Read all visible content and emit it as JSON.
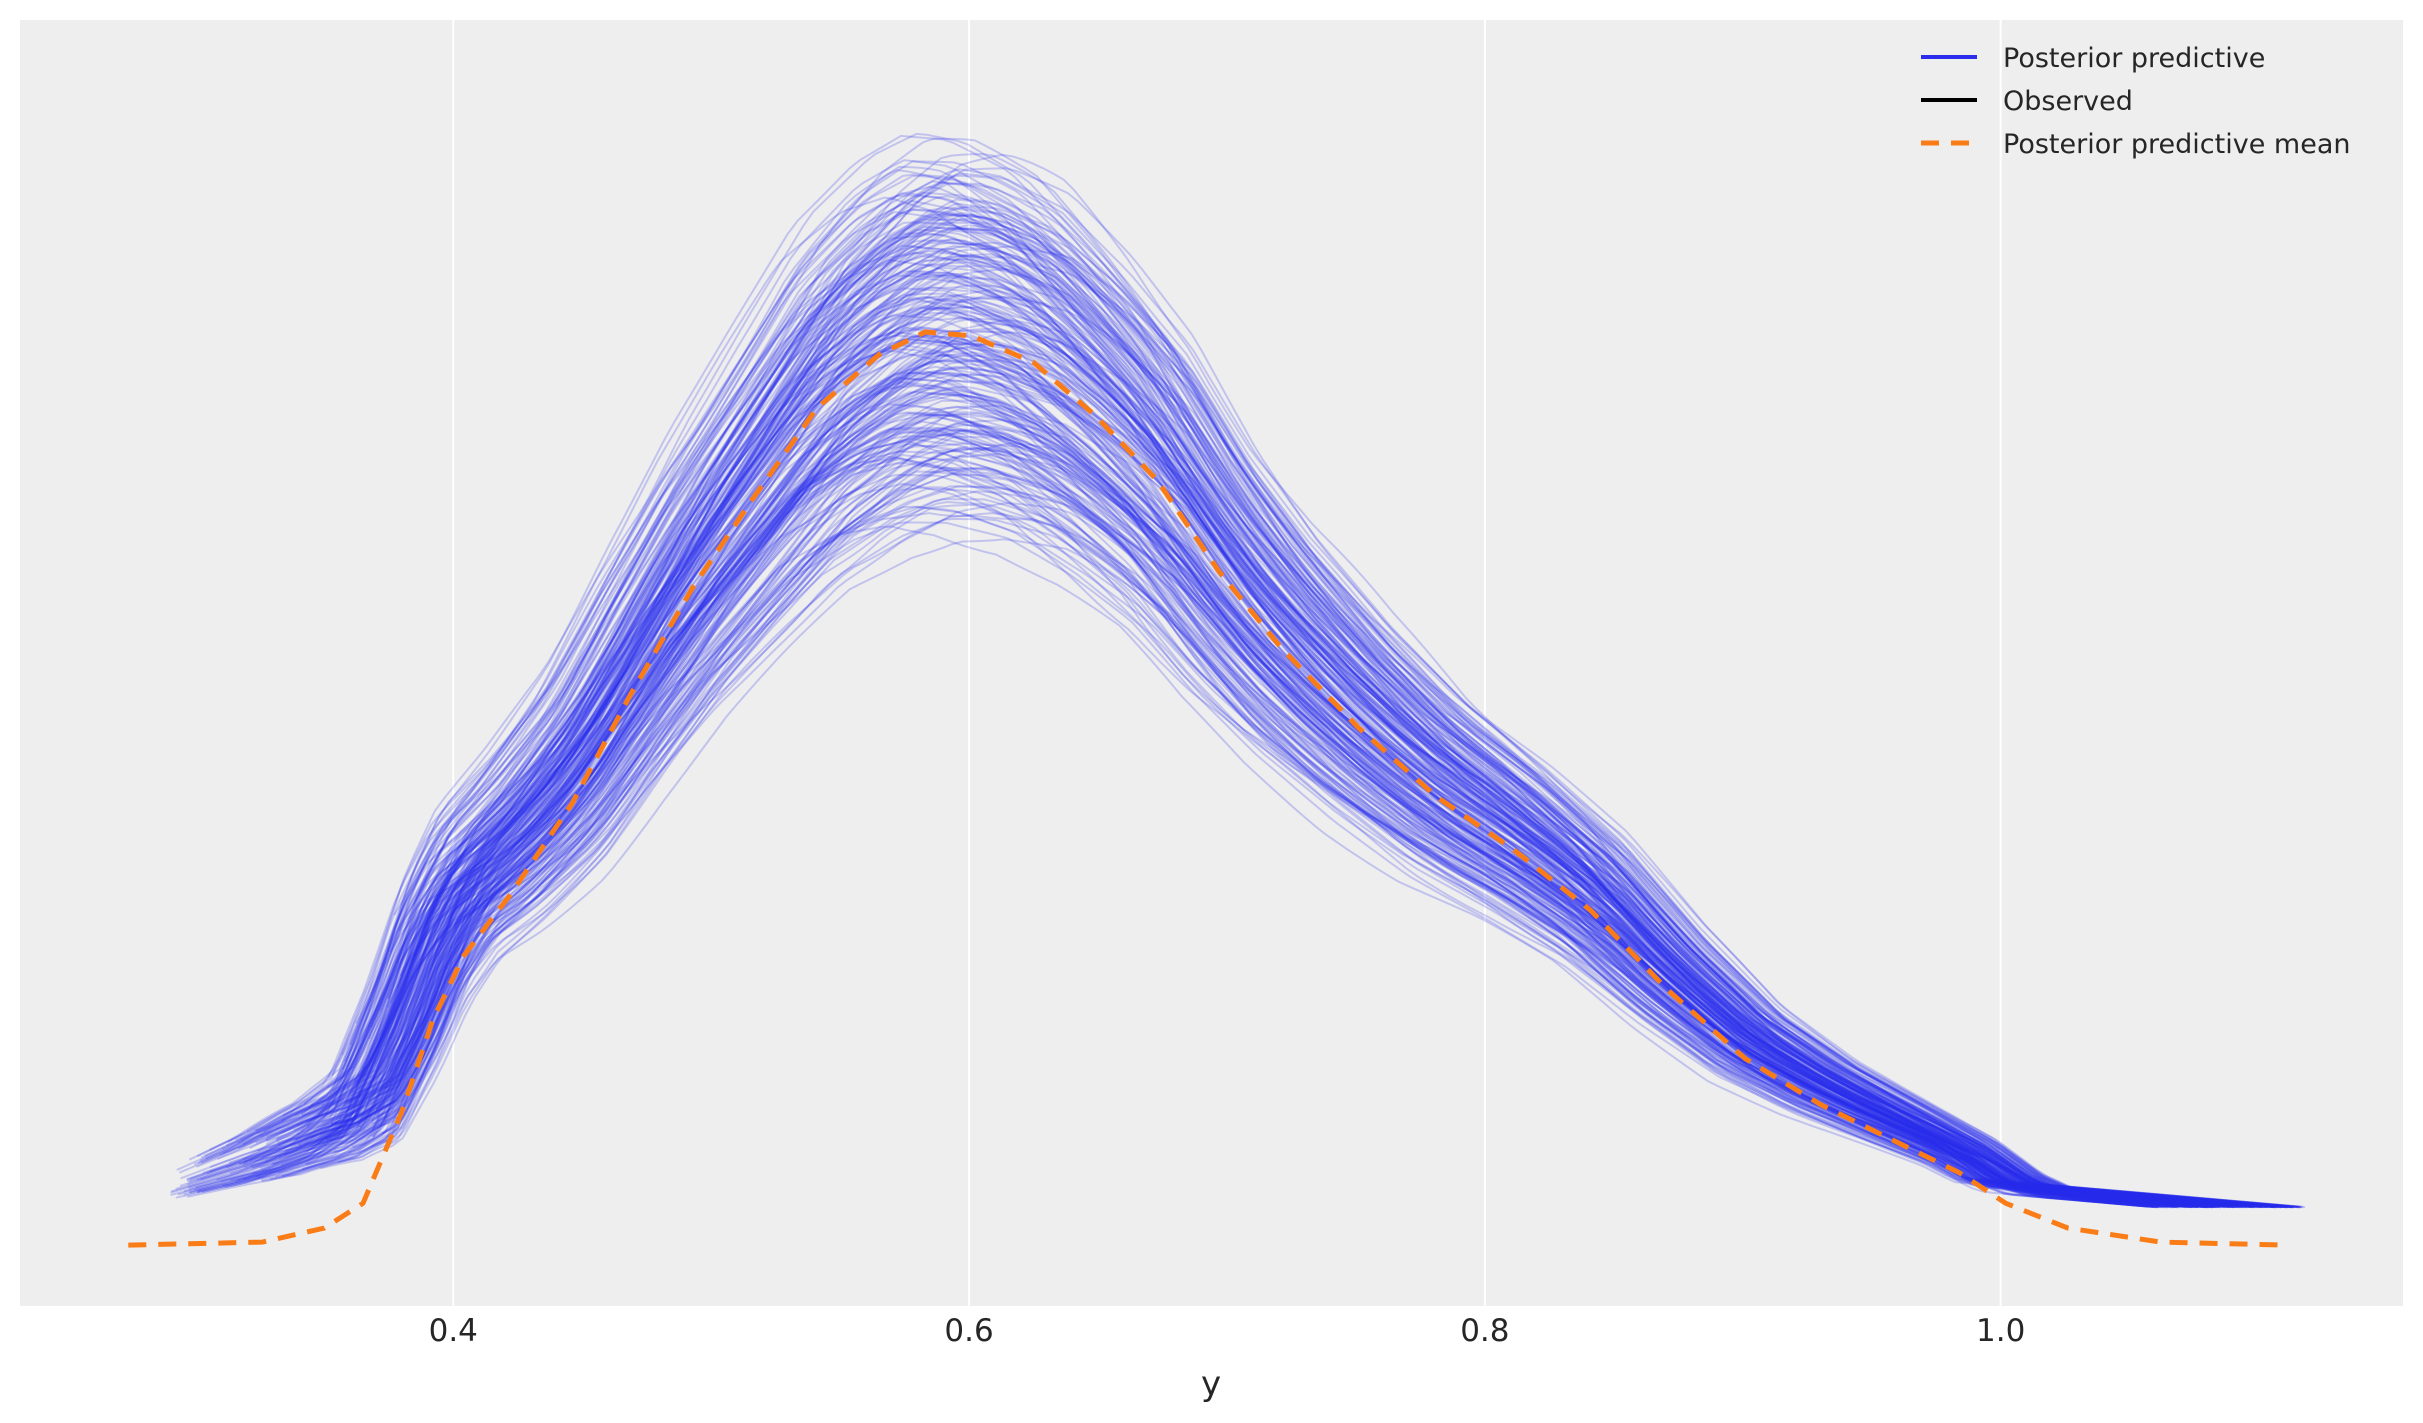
{
  "chart_data": {
    "type": "line",
    "title": "",
    "xlabel": "y",
    "ylabel": "",
    "xlim": [
      0.232,
      1.156
    ],
    "ylim": [
      -0.16,
      3.22
    ],
    "x_ticks": [
      "0.4",
      "0.6",
      "0.8",
      "1.0"
    ],
    "x_tick_values": [
      0.4,
      0.6,
      0.8,
      1.0
    ],
    "y_ticks_shown": false,
    "grid": "vertical",
    "legend_position": "top-right",
    "background_color": "#eeeeee",
    "legend": [
      {
        "label": "Posterior predictive",
        "color": "#2a2eec",
        "style": "solid"
      },
      {
        "label": "Observed",
        "color": "#000000",
        "style": "solid"
      },
      {
        "label": "Posterior predictive mean",
        "color": "#fa7c17",
        "style": "dashed"
      }
    ],
    "series": [
      {
        "name": "Posterior predictive mean",
        "color": "#fa7c17",
        "style": "dashed",
        "x": [
          0.274,
          0.326,
          0.35,
          0.365,
          0.38,
          0.392,
          0.404,
          0.422,
          0.446,
          0.469,
          0.493,
          0.517,
          0.541,
          0.565,
          0.583,
          0.601,
          0.625,
          0.649,
          0.673,
          0.697,
          0.721,
          0.751,
          0.781,
          0.811,
          0.841,
          0.871,
          0.901,
          0.93,
          0.96,
          0.984,
          1.002,
          1.026,
          1.062,
          1.111
        ],
        "y": [
          0,
          0.008,
          0.045,
          0.11,
          0.35,
          0.59,
          0.76,
          0.92,
          1.16,
          1.45,
          1.73,
          1.97,
          2.2,
          2.34,
          2.4,
          2.39,
          2.32,
          2.18,
          2.01,
          1.77,
          1.57,
          1.36,
          1.18,
          1.04,
          0.88,
          0.67,
          0.49,
          0.37,
          0.27,
          0.19,
          0.11,
          0.045,
          0.008,
          0
        ]
      },
      {
        "name": "Posterior predictive",
        "color": "#2a2eec",
        "style": "solid",
        "description_of_samples": "many KDE curves scattered around the mean, density peak range",
        "peak_density_range": [
          2.05,
          3.07
        ],
        "x_support_range": [
          0.28,
          1.12
        ]
      }
    ]
  }
}
